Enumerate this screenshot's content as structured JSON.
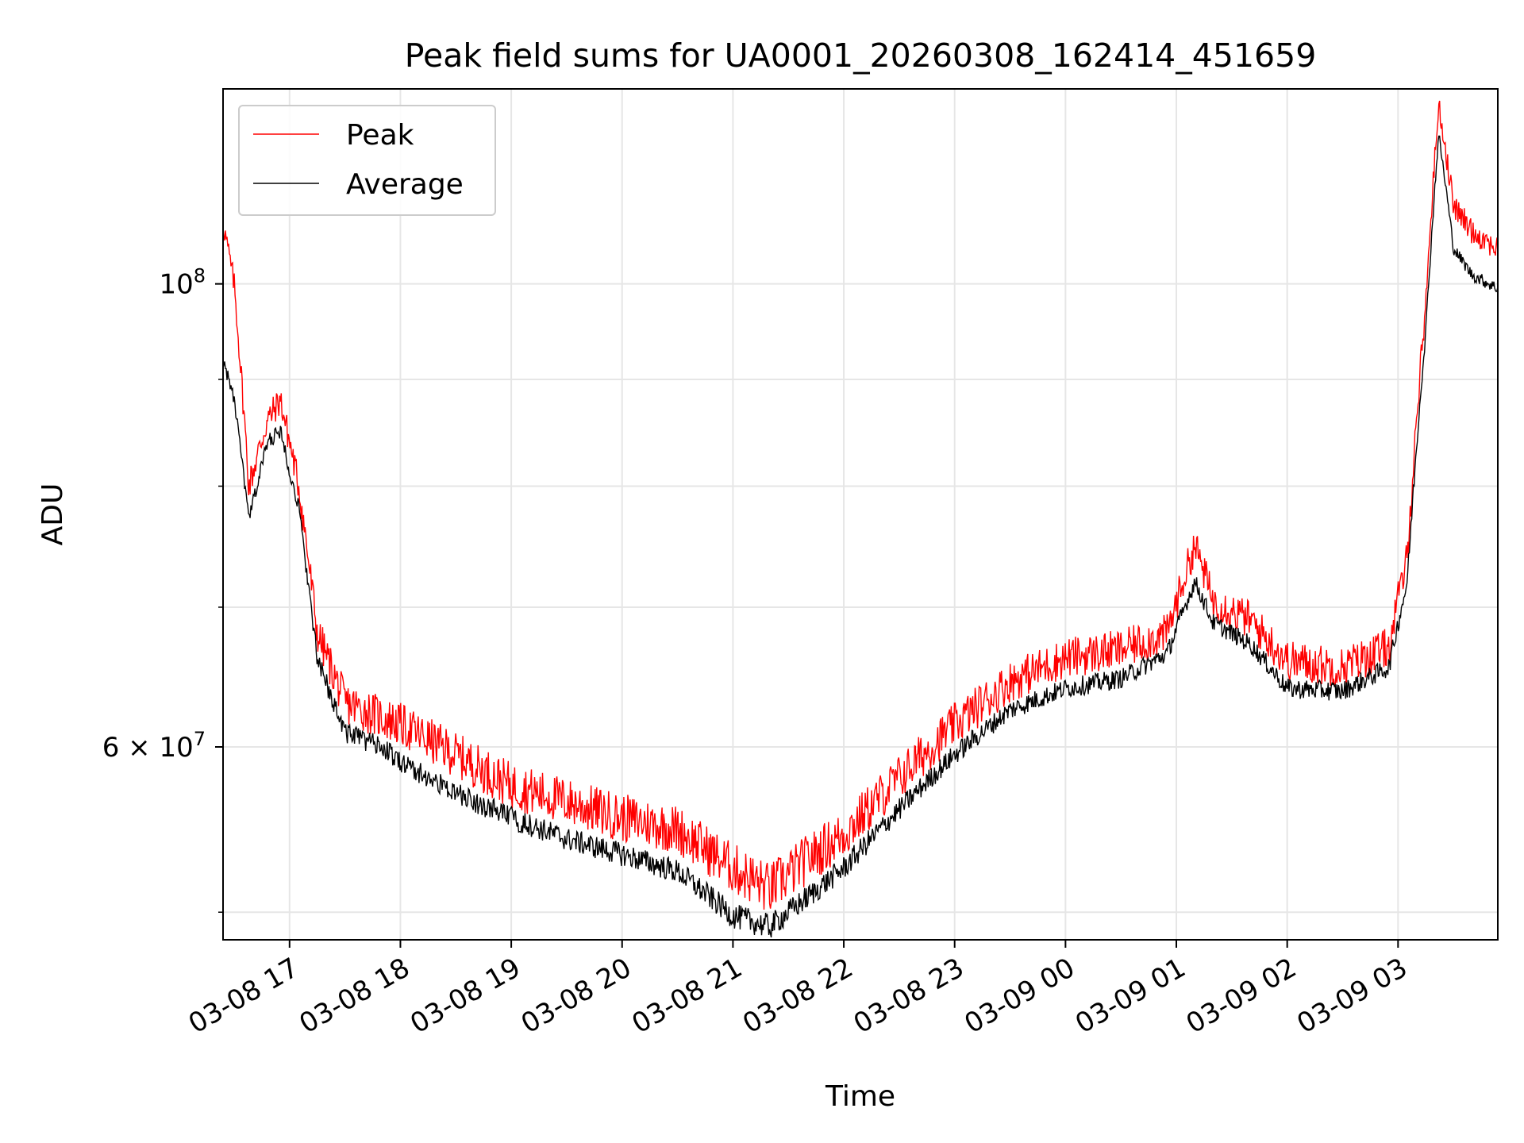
{
  "chart_data": {
    "type": "line",
    "title": "Peak field sums for UA0001_20260308_162414_451659",
    "xlabel": "Time",
    "ylabel": "ADU",
    "yscale": "log",
    "grid": true,
    "legend_position": "upper-left",
    "xlim": [
      "2026-03-08 16:24",
      "2026-03-09 03:54"
    ],
    "ylim": [
      48500000,
      124000000
    ],
    "x_ticks": [
      {
        "value": "2026-03-08 17:00",
        "label": "03-08 17"
      },
      {
        "value": "2026-03-08 18:00",
        "label": "03-08 18"
      },
      {
        "value": "2026-03-08 19:00",
        "label": "03-08 19"
      },
      {
        "value": "2026-03-08 20:00",
        "label": "03-08 20"
      },
      {
        "value": "2026-03-08 21:00",
        "label": "03-08 21"
      },
      {
        "value": "2026-03-08 22:00",
        "label": "03-08 22"
      },
      {
        "value": "2026-03-08 23:00",
        "label": "03-08 23"
      },
      {
        "value": "2026-03-09 00:00",
        "label": "03-09 00"
      },
      {
        "value": "2026-03-09 01:00",
        "label": "03-09 01"
      },
      {
        "value": "2026-03-09 02:00",
        "label": "03-09 02"
      },
      {
        "value": "2026-03-09 03:00",
        "label": "03-09 03"
      }
    ],
    "y_major_ticks": [
      {
        "value": 60000000,
        "label_base": "6 × 10",
        "label_exp": "7"
      },
      {
        "value": 100000000,
        "label_base": "10",
        "label_exp": "8"
      }
    ],
    "y_minor_ticks": [
      50000000,
      70000000,
      80000000,
      90000000
    ],
    "series": [
      {
        "name": "Peak",
        "color": "#ff0000",
        "noise_amplitude": 1500000,
        "x": [
          "2026-03-08 16:24",
          "2026-03-08 16:30",
          "2026-03-08 16:38",
          "2026-03-08 16:48",
          "2026-03-08 16:55",
          "2026-03-08 17:05",
          "2026-03-08 17:15",
          "2026-03-08 17:30",
          "2026-03-08 17:50",
          "2026-03-08 18:00",
          "2026-03-08 18:30",
          "2026-03-08 19:00",
          "2026-03-08 19:30",
          "2026-03-08 20:00",
          "2026-03-08 20:30",
          "2026-03-08 21:00",
          "2026-03-08 21:20",
          "2026-03-08 21:40",
          "2026-03-08 22:00",
          "2026-03-08 22:30",
          "2026-03-08 23:00",
          "2026-03-08 23:30",
          "2026-03-09 00:00",
          "2026-03-09 00:30",
          "2026-03-09 00:55",
          "2026-03-09 01:10",
          "2026-03-09 01:20",
          "2026-03-09 01:40",
          "2026-03-09 02:00",
          "2026-03-09 02:30",
          "2026-03-09 02:55",
          "2026-03-09 03:05",
          "2026-03-09 03:15",
          "2026-03-09 03:22",
          "2026-03-09 03:30",
          "2026-03-09 03:40",
          "2026-03-09 03:54"
        ],
        "y": [
          107000000,
          100000000,
          80000000,
          86000000,
          88000000,
          80000000,
          68000000,
          63000000,
          62000000,
          61500000,
          59500000,
          57500000,
          56500000,
          55500000,
          54800000,
          52500000,
          51300000,
          53000000,
          54500000,
          58000000,
          61500000,
          64500000,
          66200000,
          66800000,
          68000000,
          75000000,
          70500000,
          69000000,
          66000000,
          65500000,
          67000000,
          74000000,
          98000000,
          122000000,
          109000000,
          106000000,
          104000000
        ]
      },
      {
        "name": "Average",
        "color": "#000000",
        "noise_amplitude": 700000,
        "x": [
          "2026-03-08 16:24",
          "2026-03-08 16:30",
          "2026-03-08 16:38",
          "2026-03-08 16:48",
          "2026-03-08 16:55",
          "2026-03-08 17:05",
          "2026-03-08 17:15",
          "2026-03-08 17:30",
          "2026-03-08 17:50",
          "2026-03-08 18:00",
          "2026-03-08 18:30",
          "2026-03-08 19:00",
          "2026-03-08 19:30",
          "2026-03-08 20:00",
          "2026-03-08 20:30",
          "2026-03-08 21:00",
          "2026-03-08 21:20",
          "2026-03-08 21:40",
          "2026-03-08 22:00",
          "2026-03-08 22:30",
          "2026-03-08 23:00",
          "2026-03-08 23:30",
          "2026-03-09 00:00",
          "2026-03-09 00:30",
          "2026-03-09 00:55",
          "2026-03-09 01:10",
          "2026-03-09 01:20",
          "2026-03-09 01:40",
          "2026-03-09 02:00",
          "2026-03-09 02:30",
          "2026-03-09 02:55",
          "2026-03-09 03:05",
          "2026-03-09 03:15",
          "2026-03-09 03:22",
          "2026-03-09 03:30",
          "2026-03-09 03:40",
          "2026-03-09 03:54"
        ],
        "y": [
          92000000,
          88000000,
          77000000,
          84000000,
          85000000,
          78000000,
          66000000,
          61000000,
          60000000,
          59000000,
          57000000,
          55500000,
          54200000,
          53300000,
          52300000,
          49800000,
          49200000,
          50800000,
          52500000,
          56000000,
          59500000,
          62500000,
          64000000,
          64700000,
          66500000,
          72000000,
          68800000,
          67200000,
          64000000,
          63800000,
          65500000,
          72000000,
          95000000,
          118000000,
          104000000,
          101000000,
          99500000
        ]
      }
    ]
  }
}
